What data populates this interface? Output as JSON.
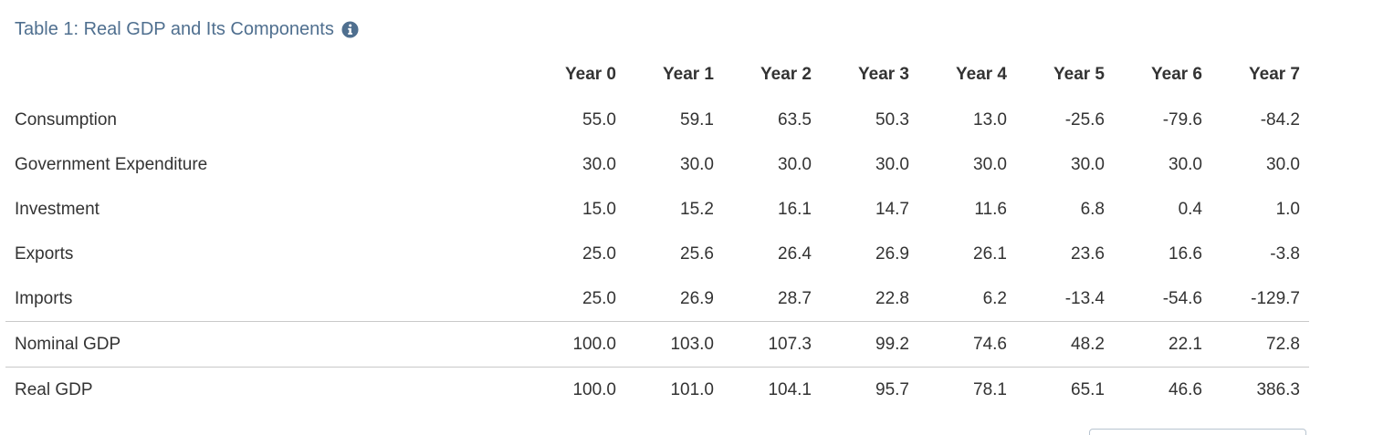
{
  "title": "Table 1: Real GDP and Its Components",
  "info_icon": "info-circle-icon",
  "colors": {
    "title": "#4f6f8f",
    "icon": "#4f6f8f",
    "divider": "#c9c9c9"
  },
  "table": {
    "headers": [
      "Year 0",
      "Year 1",
      "Year 2",
      "Year 3",
      "Year 4",
      "Year 5",
      "Year 6",
      "Year 7"
    ],
    "rows": [
      {
        "label": "Consumption",
        "values": [
          "55.0",
          "59.1",
          "63.5",
          "50.3",
          "13.0",
          "-25.6",
          "-79.6",
          "-84.2"
        ]
      },
      {
        "label": "Government Expenditure",
        "values": [
          "30.0",
          "30.0",
          "30.0",
          "30.0",
          "30.0",
          "30.0",
          "30.0",
          "30.0"
        ]
      },
      {
        "label": "Investment",
        "values": [
          "15.0",
          "15.2",
          "16.1",
          "14.7",
          "11.6",
          "6.8",
          "0.4",
          "1.0"
        ]
      },
      {
        "label": "Exports",
        "values": [
          "25.0",
          "25.6",
          "26.4",
          "26.9",
          "26.1",
          "23.6",
          "16.6",
          "-3.8"
        ]
      },
      {
        "label": "Imports",
        "values": [
          "25.0",
          "26.9",
          "28.7",
          "22.8",
          "6.2",
          "-13.4",
          "-54.6",
          "-129.7"
        ]
      },
      {
        "label": "Nominal GDP",
        "values": [
          "100.0",
          "103.0",
          "107.3",
          "99.2",
          "74.6",
          "48.2",
          "22.1",
          "72.8"
        ]
      },
      {
        "label": "Real GDP",
        "values": [
          "100.0",
          "101.0",
          "104.1",
          "95.7",
          "78.1",
          "65.1",
          "46.6",
          "386.3"
        ]
      }
    ]
  }
}
